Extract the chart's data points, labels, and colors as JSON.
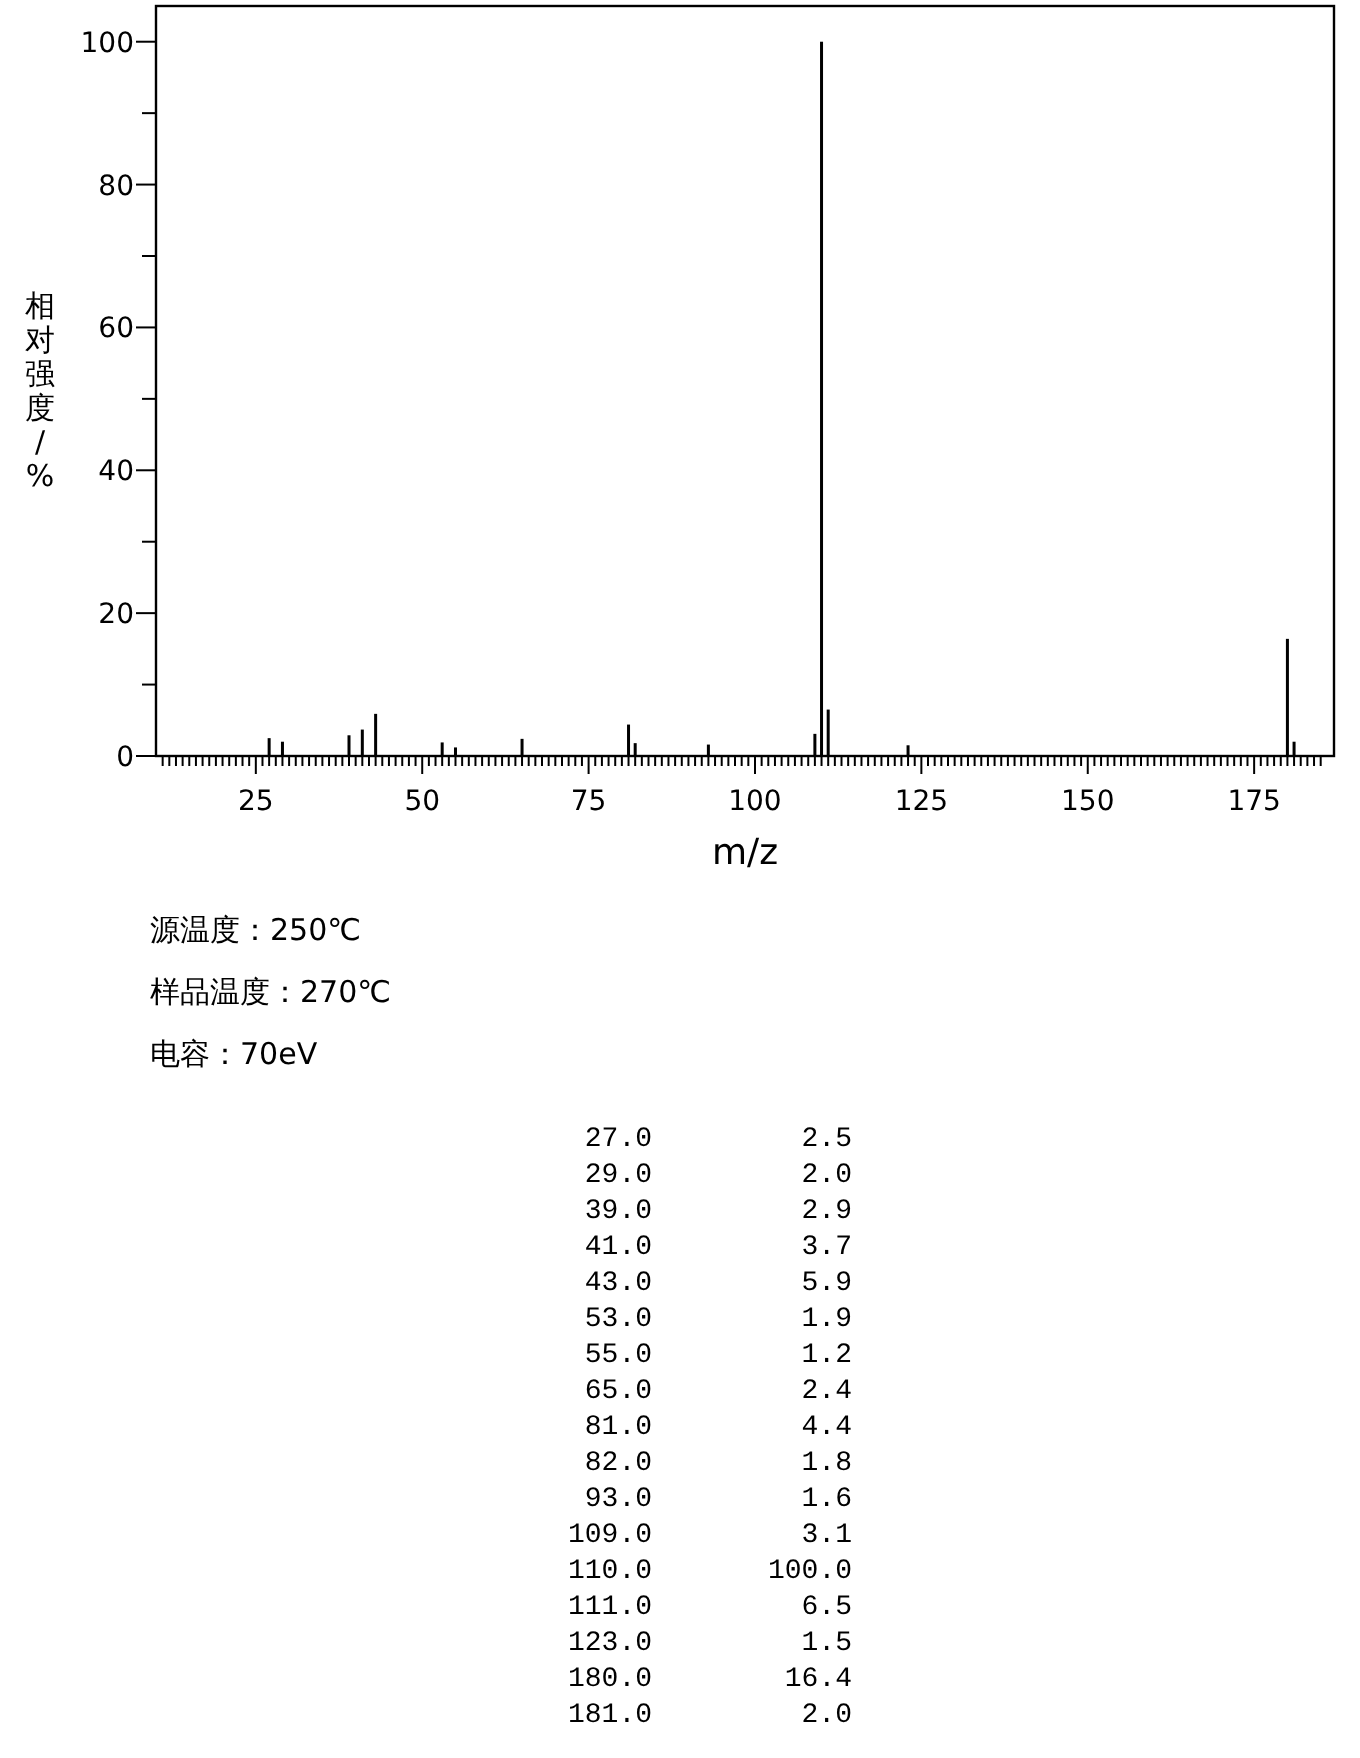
{
  "chart_data": [
    {
      "type": "bar",
      "xlabel": "m/z",
      "ylabel": "相对强度/%",
      "annotations": [
        "源温度：250℃",
        "样品温度：270℃",
        "电容：70eV"
      ],
      "x": [
        27,
        29,
        39,
        41,
        43,
        53,
        55,
        65,
        81,
        82,
        93,
        109,
        110,
        111,
        123,
        180,
        181
      ],
      "values": [
        2.5,
        2.0,
        2.9,
        3.7,
        5.9,
        1.9,
        1.2,
        2.4,
        4.4,
        1.8,
        1.6,
        3.1,
        100.0,
        6.5,
        1.5,
        16.4,
        2.0
      ],
      "color": "#000000",
      "xlim": [
        10,
        187
      ],
      "ylim": [
        0,
        105
      ],
      "yticks": [
        0,
        {
          "value": 10,
          "label": null
        },
        20,
        {
          "value": 30,
          "label": null
        },
        40,
        {
          "value": 50,
          "label": null
        },
        60,
        {
          "value": 70,
          "label": null
        },
        80,
        {
          "value": 90,
          "label": null
        },
        100
      ],
      "xticks": [
        {
          "value": 11,
          "label": null
        },
        {
          "value": 12,
          "label": null
        },
        {
          "value": 13,
          "label": null
        },
        {
          "value": 14,
          "label": null
        },
        {
          "value": 15,
          "label": null
        },
        {
          "value": 16,
          "label": null
        },
        {
          "value": 17,
          "label": null
        },
        {
          "value": 18,
          "label": null
        },
        {
          "value": 19,
          "label": null
        },
        {
          "value": 20,
          "label": null
        },
        {
          "value": 21,
          "label": null
        },
        {
          "value": 22,
          "label": null
        },
        {
          "value": 23,
          "label": null
        },
        {
          "value": 24,
          "label": null
        },
        25,
        {
          "value": 26,
          "label": null
        },
        {
          "value": 27,
          "label": null
        },
        {
          "value": 28,
          "label": null
        },
        {
          "value": 29,
          "label": null
        },
        {
          "value": 30,
          "label": null
        },
        {
          "value": 31,
          "label": null
        },
        {
          "value": 32,
          "label": null
        },
        {
          "value": 33,
          "label": null
        },
        {
          "value": 34,
          "label": null
        },
        {
          "value": 35,
          "label": null
        },
        {
          "value": 36,
          "label": null
        },
        {
          "value": 37,
          "label": null
        },
        {
          "value": 38,
          "label": null
        },
        {
          "value": 39,
          "label": null
        },
        {
          "value": 40,
          "label": null
        },
        {
          "value": 41,
          "label": null
        },
        {
          "value": 42,
          "label": null
        },
        {
          "value": 43,
          "label": null
        },
        {
          "value": 44,
          "label": null
        },
        {
          "value": 45,
          "label": null
        },
        {
          "value": 46,
          "label": null
        },
        {
          "value": 47,
          "label": null
        },
        {
          "value": 48,
          "label": null
        },
        {
          "value": 49,
          "label": null
        },
        50,
        {
          "value": 51,
          "label": null
        },
        {
          "value": 52,
          "label": null
        },
        {
          "value": 53,
          "label": null
        },
        {
          "value": 54,
          "label": null
        },
        {
          "value": 55,
          "label": null
        },
        {
          "value": 56,
          "label": null
        },
        {
          "value": 57,
          "label": null
        },
        {
          "value": 58,
          "label": null
        },
        {
          "value": 59,
          "label": null
        },
        {
          "value": 60,
          "label": null
        },
        {
          "value": 61,
          "label": null
        },
        {
          "value": 62,
          "label": null
        },
        {
          "value": 63,
          "label": null
        },
        {
          "value": 64,
          "label": null
        },
        {
          "value": 65,
          "label": null
        },
        {
          "value": 66,
          "label": null
        },
        {
          "value": 67,
          "label": null
        },
        {
          "value": 68,
          "label": null
        },
        {
          "value": 69,
          "label": null
        },
        {
          "value": 70,
          "label": null
        },
        {
          "value": 71,
          "label": null
        },
        {
          "value": 72,
          "label": null
        },
        {
          "value": 73,
          "label": null
        },
        {
          "value": 74,
          "label": null
        },
        75,
        {
          "value": 76,
          "label": null
        },
        {
          "value": 77,
          "label": null
        },
        {
          "value": 78,
          "label": null
        },
        {
          "value": 79,
          "label": null
        },
        {
          "value": 80,
          "label": null
        },
        {
          "value": 81,
          "label": null
        },
        {
          "value": 82,
          "label": null
        },
        {
          "value": 83,
          "label": null
        },
        {
          "value": 84,
          "label": null
        },
        {
          "value": 85,
          "label": null
        },
        {
          "value": 86,
          "label": null
        },
        {
          "value": 87,
          "label": null
        },
        {
          "value": 88,
          "label": null
        },
        {
          "value": 89,
          "label": null
        },
        {
          "value": 90,
          "label": null
        },
        {
          "value": 91,
          "label": null
        },
        {
          "value": 92,
          "label": null
        },
        {
          "value": 93,
          "label": null
        },
        {
          "value": 94,
          "label": null
        },
        {
          "value": 95,
          "label": null
        },
        {
          "value": 96,
          "label": null
        },
        {
          "value": 97,
          "label": null
        },
        {
          "value": 98,
          "label": null
        },
        {
          "value": 99,
          "label": null
        },
        100,
        {
          "value": 101,
          "label": null
        },
        {
          "value": 102,
          "label": null
        },
        {
          "value": 103,
          "label": null
        },
        {
          "value": 104,
          "label": null
        },
        {
          "value": 105,
          "label": null
        },
        {
          "value": 106,
          "label": null
        },
        {
          "value": 107,
          "label": null
        },
        {
          "value": 108,
          "label": null
        },
        {
          "value": 109,
          "label": null
        },
        {
          "value": 110,
          "label": null
        },
        {
          "value": 111,
          "label": null
        },
        {
          "value": 112,
          "label": null
        },
        {
          "value": 113,
          "label": null
        },
        {
          "value": 114,
          "label": null
        },
        {
          "value": 115,
          "label": null
        },
        {
          "value": 116,
          "label": null
        },
        {
          "value": 117,
          "label": null
        },
        {
          "value": 118,
          "label": null
        },
        {
          "value": 119,
          "label": null
        },
        {
          "value": 120,
          "label": null
        },
        {
          "value": 121,
          "label": null
        },
        {
          "value": 122,
          "label": null
        },
        {
          "value": 123,
          "label": null
        },
        {
          "value": 124,
          "label": null
        },
        125,
        {
          "value": 126,
          "label": null
        },
        {
          "value": 127,
          "label": null
        },
        {
          "value": 128,
          "label": null
        },
        {
          "value": 129,
          "label": null
        },
        {
          "value": 130,
          "label": null
        },
        {
          "value": 131,
          "label": null
        },
        {
          "value": 132,
          "label": null
        },
        {
          "value": 133,
          "label": null
        },
        {
          "value": 134,
          "label": null
        },
        {
          "value": 135,
          "label": null
        },
        {
          "value": 136,
          "label": null
        },
        {
          "value": 137,
          "label": null
        },
        {
          "value": 138,
          "label": null
        },
        {
          "value": 139,
          "label": null
        },
        {
          "value": 140,
          "label": null
        },
        {
          "value": 141,
          "label": null
        },
        {
          "value": 142,
          "label": null
        },
        {
          "value": 143,
          "label": null
        },
        {
          "value": 144,
          "label": null
        },
        {
          "value": 145,
          "label": null
        },
        {
          "value": 146,
          "label": null
        },
        {
          "value": 147,
          "label": null
        },
        {
          "value": 148,
          "label": null
        },
        {
          "value": 149,
          "label": null
        },
        150,
        {
          "value": 151,
          "label": null
        },
        {
          "value": 152,
          "label": null
        },
        {
          "value": 153,
          "label": null
        },
        {
          "value": 154,
          "label": null
        },
        {
          "value": 155,
          "label": null
        },
        {
          "value": 156,
          "label": null
        },
        {
          "value": 157,
          "label": null
        },
        {
          "value": 158,
          "label": null
        },
        {
          "value": 159,
          "label": null
        },
        {
          "value": 160,
          "label": null
        },
        {
          "value": 161,
          "label": null
        },
        {
          "value": 162,
          "label": null
        },
        {
          "value": 163,
          "label": null
        },
        {
          "value": 164,
          "label": null
        },
        {
          "value": 165,
          "label": null
        },
        {
          "value": 166,
          "label": null
        },
        {
          "value": 167,
          "label": null
        },
        {
          "value": 168,
          "label": null
        },
        {
          "value": 169,
          "label": null
        },
        {
          "value": 170,
          "label": null
        },
        {
          "value": 171,
          "label": null
        },
        {
          "value": 172,
          "label": null
        },
        {
          "value": 173,
          "label": null
        },
        {
          "value": 174,
          "label": null
        },
        175,
        {
          "value": 176,
          "label": null
        },
        {
          "value": 177,
          "label": null
        },
        {
          "value": 178,
          "label": null
        },
        {
          "value": 179,
          "label": null
        },
        {
          "value": 180,
          "label": null
        },
        {
          "value": 181,
          "label": null
        },
        {
          "value": 182,
          "label": null
        },
        {
          "value": 183,
          "label": null
        },
        {
          "value": 184,
          "label": null
        },
        {
          "value": 185,
          "label": null
        }
      ]
    },
    {
      "type": "other",
      "annotations": [
        "27.0",
        "2.5",
        "29.0",
        "2.0",
        "39.0",
        "2.9",
        "41.0",
        "3.7",
        "43.0",
        "5.9",
        "53.0",
        "1.9",
        "55.0",
        "1.2",
        "65.0",
        "2.4",
        "81.0",
        "4.4",
        "82.0",
        "1.8",
        "93.0",
        "1.6",
        "109.0",
        "3.1",
        "110.0",
        "100.0",
        "111.0",
        "6.5",
        "123.0",
        "1.5",
        "180.0",
        "16.4",
        "181.0",
        "2.0"
      ]
    }
  ]
}
